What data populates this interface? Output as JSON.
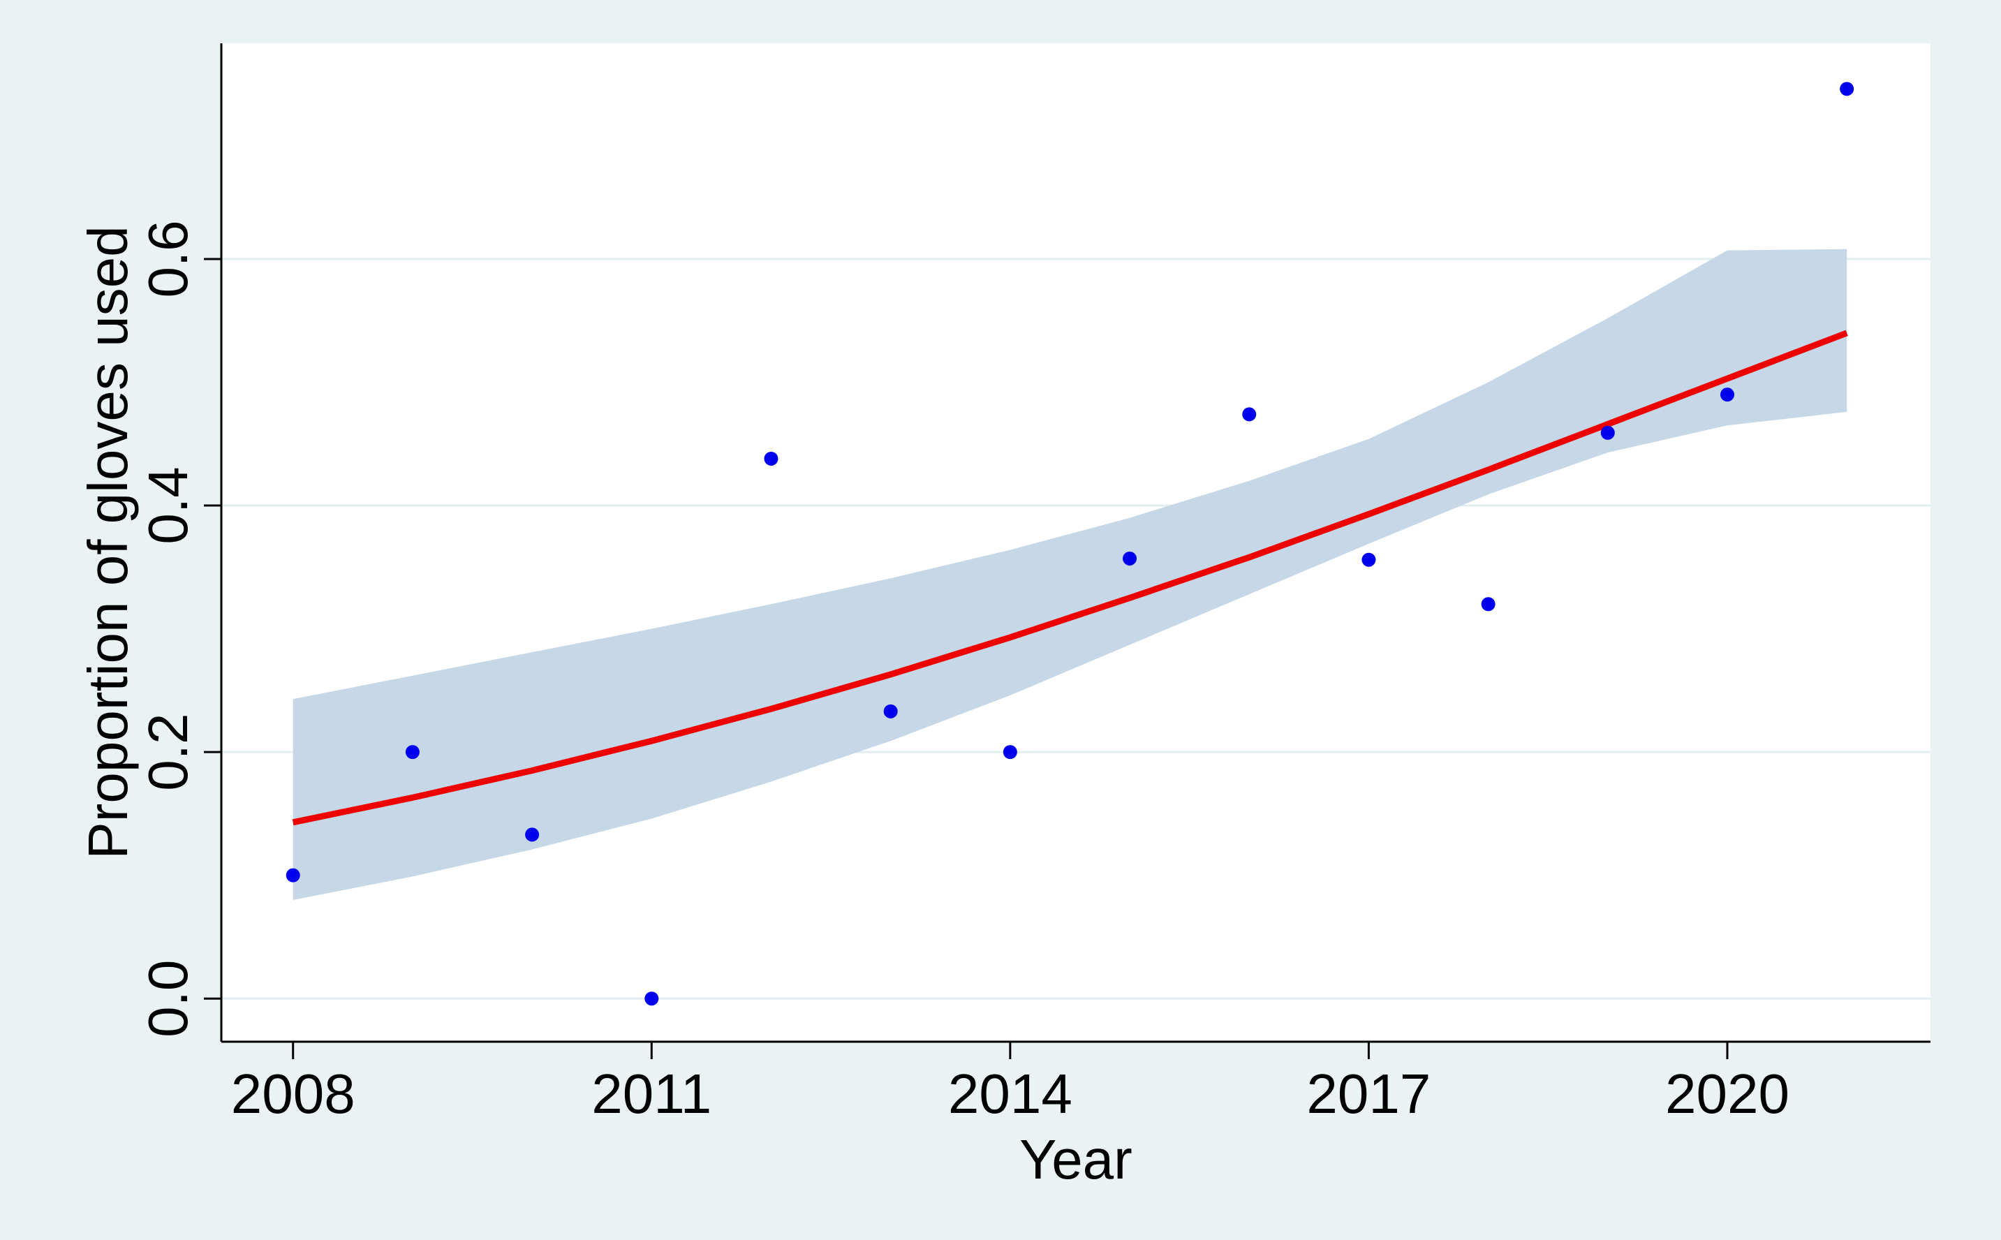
{
  "chart_data": {
    "type": "scatter",
    "title": "",
    "xlabel": "Year",
    "ylabel": "Proportion of gloves used",
    "xlim": [
      2007.4,
      2021.7
    ],
    "ylim": [
      -0.035,
      0.775
    ],
    "x_ticks": [
      2008,
      2011,
      2014,
      2017,
      2020
    ],
    "x_tick_labels": [
      "2008",
      "2011",
      "2014",
      "2017",
      "2020"
    ],
    "y_ticks": [
      0.0,
      0.2,
      0.4,
      0.6
    ],
    "y_tick_labels": [
      "0.0",
      "0.2",
      "0.4",
      "0.6"
    ],
    "grid": "horizontal",
    "legend": "none",
    "series": [
      {
        "kind": "scatter",
        "color": "#0000ee",
        "points": [
          {
            "x": 2008,
            "y": 0.1
          },
          {
            "x": 2009,
            "y": 0.2
          },
          {
            "x": 2010,
            "y": 0.133
          },
          {
            "x": 2011,
            "y": 0.0
          },
          {
            "x": 2012,
            "y": 0.438
          },
          {
            "x": 2013,
            "y": 0.233
          },
          {
            "x": 2014,
            "y": 0.2
          },
          {
            "x": 2015,
            "y": 0.357
          },
          {
            "x": 2016,
            "y": 0.474
          },
          {
            "x": 2017,
            "y": 0.356
          },
          {
            "x": 2018,
            "y": 0.32
          },
          {
            "x": 2019,
            "y": 0.459
          },
          {
            "x": 2020,
            "y": 0.49
          },
          {
            "x": 2021,
            "y": 0.738
          }
        ]
      },
      {
        "kind": "line",
        "color": "#ee0000",
        "x": [
          2008,
          2009,
          2010,
          2011,
          2012,
          2013,
          2014,
          2015,
          2016,
          2017,
          2018,
          2019,
          2020,
          2021
        ],
        "y": [
          0.143,
          0.163,
          0.185,
          0.209,
          0.235,
          0.263,
          0.293,
          0.325,
          0.358,
          0.393,
          0.429,
          0.466,
          0.503,
          0.54
        ]
      },
      {
        "kind": "band",
        "color": "#c6d7e7",
        "x": [
          2008,
          2009,
          2010,
          2011,
          2012,
          2013,
          2014,
          2015,
          2016,
          2017,
          2018,
          2019,
          2020,
          2021
        ],
        "lower": [
          0.08,
          0.099,
          0.121,
          0.146,
          0.176,
          0.209,
          0.246,
          0.287,
          0.328,
          0.369,
          0.409,
          0.443,
          0.465,
          0.476
        ],
        "upper": [
          0.243,
          0.262,
          0.281,
          0.3,
          0.32,
          0.341,
          0.364,
          0.39,
          0.42,
          0.454,
          0.5,
          0.552,
          0.607,
          0.608
        ]
      }
    ]
  }
}
